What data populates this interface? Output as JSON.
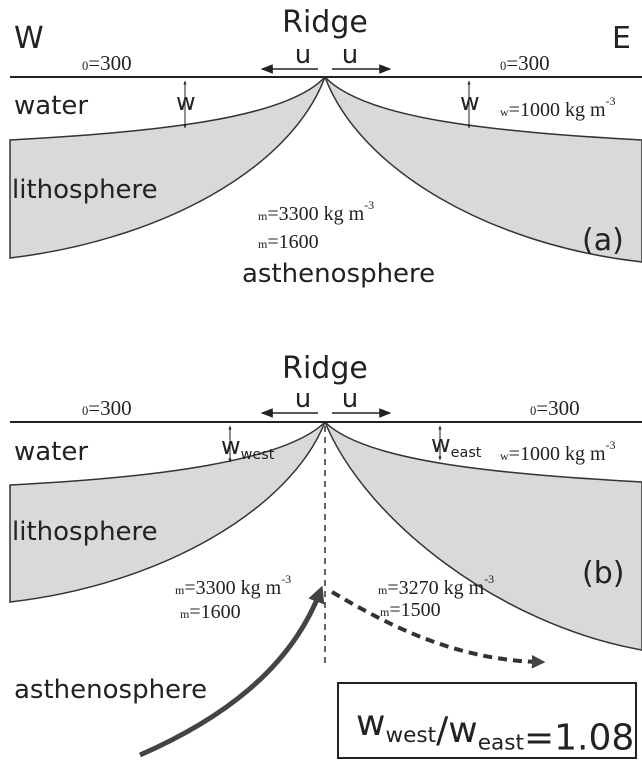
{
  "panel_a": {
    "west": "W",
    "ridge": "Ridge",
    "east": "E",
    "u_left": "u",
    "u_right": "u",
    "t0_west": {
      "sub": "0",
      "text": "=300"
    },
    "t0_east": {
      "sub": "0",
      "text": "=300"
    },
    "water": "water",
    "w_west": "w",
    "w_east": "w",
    "rho_w": {
      "sub": "w",
      "text": "=1000 kg m",
      "sup": "-3"
    },
    "lithosphere": "lithosphere",
    "rho_m": {
      "sub": "m",
      "text": "=3300 kg m",
      "sup": "-3"
    },
    "eta_m": {
      "sub": "m",
      "text": "=1600"
    },
    "label": "(a)",
    "asthenosphere": "asthenosphere"
  },
  "panel_b": {
    "ridge": "Ridge",
    "u_left": "u",
    "u_right": "u",
    "t0_west": {
      "sub": "0",
      "text": "=300"
    },
    "t0_east": {
      "sub": "0",
      "text": "=300"
    },
    "water": "water",
    "w_west": {
      "text": "w",
      "sub": "west"
    },
    "w_east": {
      "text": "w",
      "sub": "east"
    },
    "rho_w": {
      "sub": "w",
      "text": "=1000 kg m",
      "sup": "-3"
    },
    "lithosphere": "lithosphere",
    "rho_m_west": {
      "sub": "m",
      "text": "=3300 kg m",
      "sup": "-3"
    },
    "eta_m_west": {
      "sub": "m",
      "text": "=1600"
    },
    "rho_m_east": {
      "sub": "m",
      "text": "=3270 kg m",
      "sup": "-3"
    },
    "eta_m_east": {
      "sub": "m",
      "text": "=1500"
    },
    "label": "(b)",
    "asthenosphere": "asthenosphere",
    "ratio": {
      "w1": "w",
      "sub1": "west",
      "slash": "/",
      "w2": "w",
      "sub2": "east",
      "text": "=1.08"
    }
  }
}
